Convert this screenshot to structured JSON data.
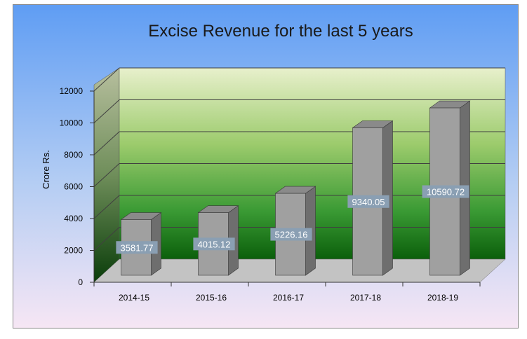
{
  "chart_data": {
    "type": "bar",
    "title": "Excise Revenue for the last 5 years",
    "xlabel": "",
    "ylabel": "Crore Rs.",
    "categories": [
      "2014-15",
      "2015-16",
      "2016-17",
      "2017-18",
      "2018-19"
    ],
    "values": [
      3581.77,
      4015.12,
      5226.16,
      9340.05,
      10590.72
    ],
    "data_labels": [
      "3581.77",
      "4015.12",
      "5226.16",
      "9340.05",
      "10590.72"
    ],
    "ylim": [
      0,
      12000
    ],
    "yticks": [
      "0",
      "2000",
      "4000",
      "6000",
      "8000",
      "10000",
      "12000"
    ],
    "grid": true,
    "legend": "none",
    "bar_color": "#a0a0a0",
    "wall_color_top": "#e4eec8",
    "wall_color_bottom": "#0f6a0f",
    "background_top": "#5f9df3",
    "background_bottom": "#f6e6f4"
  }
}
